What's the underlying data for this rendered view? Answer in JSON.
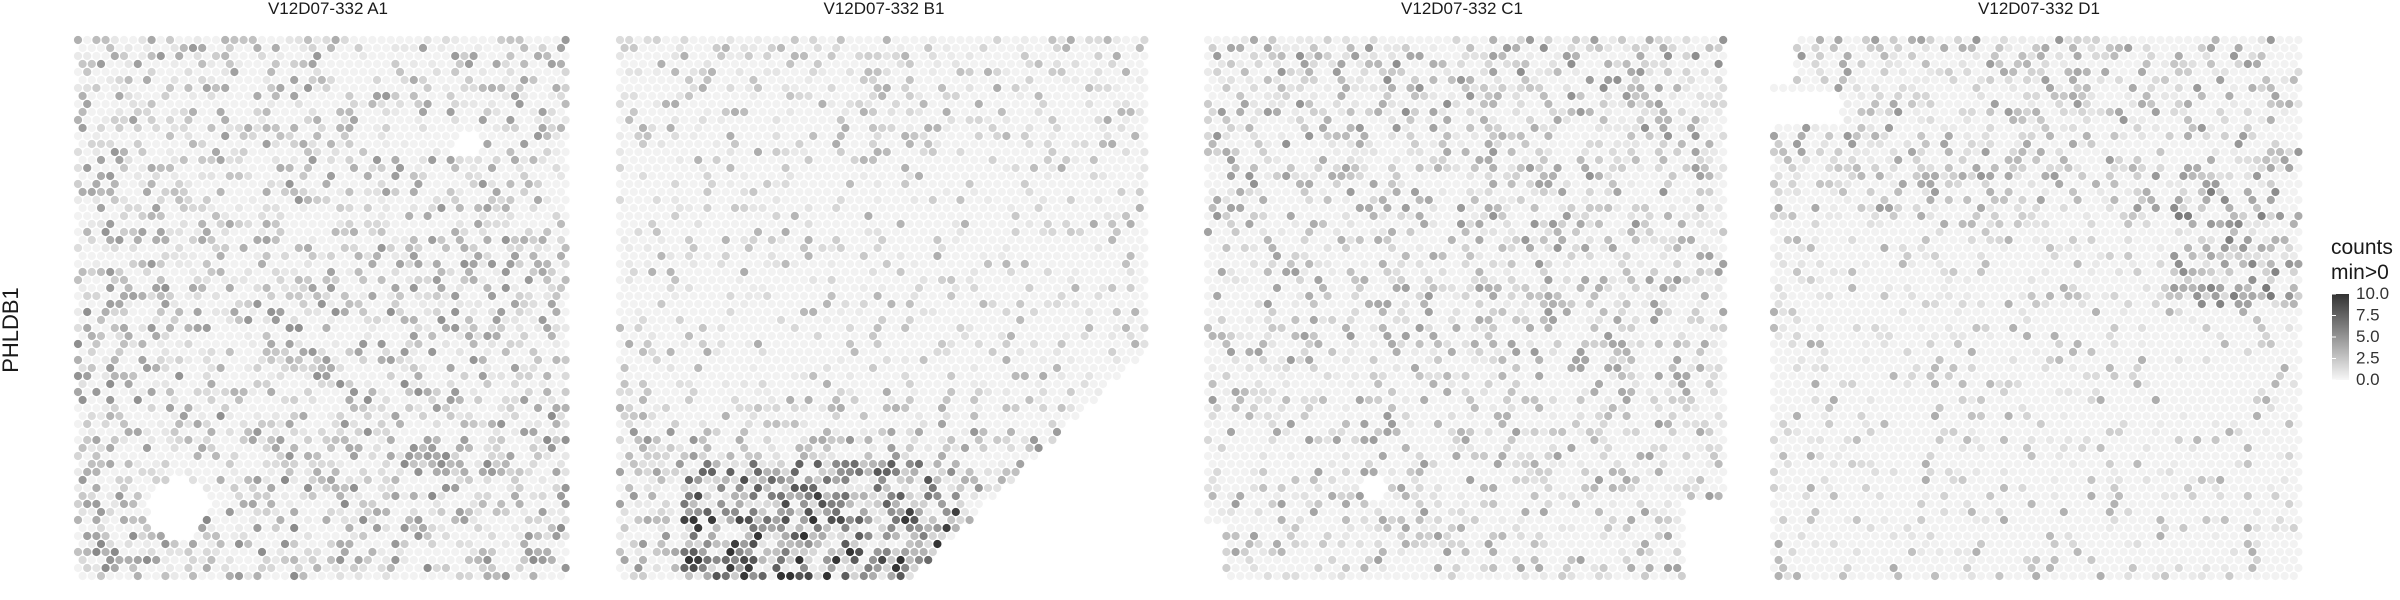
{
  "chart_data": {
    "type": "heatmap",
    "subtype": "spatial-spot-map",
    "gene": "PHLDB1",
    "panels": [
      {
        "title": "V12D07-332  A1",
        "profile": "A1"
      },
      {
        "title": "V12D07-332  B1",
        "profile": "B1"
      },
      {
        "title": "V12D07-332  C1",
        "profile": "C1"
      },
      {
        "title": "V12D07-332  D1",
        "profile": "D1"
      }
    ],
    "legend": {
      "title_line1": "counts",
      "title_line2": "min>0",
      "ticks": [
        "10.0",
        "7.5",
        "5.0",
        "2.5",
        "0.0"
      ],
      "range": [
        0,
        10
      ],
      "low_color": "#f7f7f7",
      "high_color": "#333333",
      "position": "right"
    },
    "grid": false
  }
}
